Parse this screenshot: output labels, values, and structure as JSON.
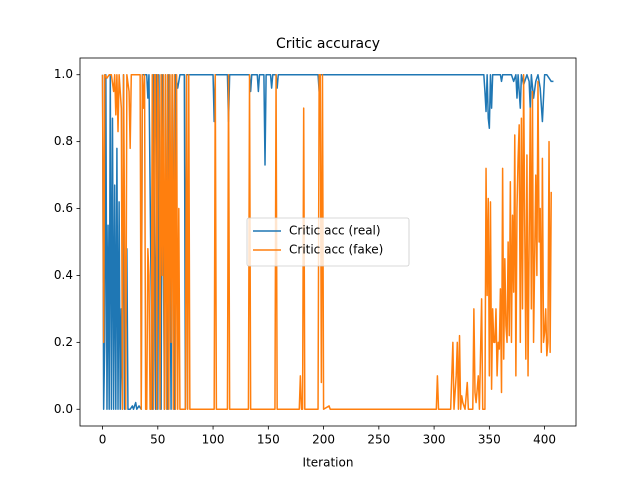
{
  "chart_data": {
    "type": "line",
    "title": "Critic accuracy",
    "x_label": "Iteration",
    "xlim": [
      -20.4,
      428.4
    ],
    "xticks": [
      0,
      50,
      100,
      150,
      200,
      250,
      300,
      350,
      400
    ],
    "ylim": [
      -0.05,
      1.05
    ],
    "yticks": [
      {
        "value": 0,
        "label": "0.0"
      },
      {
        "value": 0.2,
        "label": "0.2"
      },
      {
        "value": 0.4,
        "label": "0.4"
      },
      {
        "value": 0.6,
        "label": "0.6"
      },
      {
        "value": 0.8,
        "label": "0.8"
      },
      {
        "value": 1,
        "label": "1.0"
      }
    ],
    "grid": false,
    "legend": "center",
    "series": [
      {
        "name": "Critic acc (real)",
        "color": "#1f77b4",
        "x": [
          0,
          1,
          2,
          3,
          4,
          5,
          6,
          7,
          8,
          9,
          10,
          11,
          12,
          13,
          14,
          15,
          16,
          17,
          18,
          19,
          20,
          22,
          23,
          25,
          27,
          28,
          30,
          31,
          33,
          35,
          36,
          40,
          41,
          42,
          45,
          46,
          48,
          49,
          50,
          51,
          53,
          54,
          56,
          57,
          59,
          60,
          62,
          63,
          65,
          66,
          68,
          70,
          74,
          75,
          76,
          100,
          101,
          102,
          113,
          114,
          115,
          133,
          134,
          135,
          140,
          141,
          142,
          146,
          147,
          148,
          152,
          153,
          154,
          157,
          158,
          159,
          195,
          196,
          197,
          345,
          346,
          347,
          348,
          349,
          350,
          351,
          352,
          353,
          360,
          361,
          362,
          370,
          372,
          374,
          375,
          376,
          378,
          379,
          381,
          384,
          386,
          387,
          388,
          390,
          392,
          394,
          396,
          398,
          400,
          402,
          404,
          406,
          408
        ],
        "values": [
          1,
          0,
          0.2,
          1,
          0,
          0.55,
          0,
          1,
          0,
          0.87,
          0,
          0.67,
          0,
          0.78,
          0,
          0.62,
          0,
          0.3,
          0,
          1,
          0,
          0.48,
          0,
          0,
          0.01,
          0,
          0.02,
          0,
          0.01,
          0,
          1,
          1,
          0.93,
          1,
          0,
          1,
          0,
          1,
          0,
          1,
          0,
          1,
          0,
          1,
          0,
          1,
          0,
          1,
          0,
          1,
          0.96,
          1,
          1,
          0,
          1,
          1,
          0.86,
          1,
          1,
          0.86,
          1,
          1,
          0.95,
          1,
          1,
          0.95,
          1,
          1,
          0.73,
          1,
          1,
          0.96,
          1,
          1,
          0.96,
          1,
          1,
          0.95,
          1,
          1,
          0.95,
          0.89,
          1,
          0.87,
          0.84,
          1,
          0.9,
          1,
          1,
          0.98,
          1,
          1,
          0.98,
          1,
          0.93,
          1,
          0.9,
          1,
          0.97,
          1,
          0.98,
          0.9,
          1,
          0.93,
          0.98,
          1,
          0.96,
          0.86,
          1,
          1,
          0.99,
          0.98,
          0.98
        ]
      },
      {
        "name": "Critic acc (fake)",
        "color": "#ff7f0e",
        "x": [
          0,
          1,
          2,
          4,
          6,
          8,
          10,
          11,
          12,
          13,
          14,
          15,
          17,
          18,
          19,
          21,
          22,
          24,
          25,
          26,
          34,
          35,
          36,
          37,
          38,
          39,
          40,
          41,
          42,
          43,
          44,
          45,
          46,
          47,
          48,
          49,
          50,
          51,
          52,
          53,
          54,
          55,
          56,
          57,
          58,
          59,
          60,
          61,
          62,
          63,
          64,
          65,
          66,
          67,
          68,
          69,
          70,
          75,
          76,
          77,
          78,
          79,
          101,
          102,
          103,
          113,
          114,
          115,
          132,
          133,
          134,
          156,
          157,
          158,
          178,
          179,
          180,
          181,
          182,
          183,
          195,
          196,
          197,
          198,
          199,
          200,
          205,
          206,
          302,
          303,
          304,
          315,
          317,
          318,
          320,
          321,
          322,
          323,
          324,
          325,
          326,
          328,
          330,
          331,
          335,
          336,
          337,
          338,
          340,
          341,
          343,
          344,
          346,
          347,
          348,
          349,
          350,
          351,
          352,
          353,
          354,
          355,
          356,
          357,
          358,
          359,
          360,
          361,
          362,
          363,
          364,
          365,
          366,
          367,
          368,
          369,
          370,
          371,
          372,
          373,
          374,
          375,
          376,
          377,
          378,
          379,
          380,
          381,
          382,
          383,
          384,
          385,
          386,
          387,
          388,
          389,
          390,
          392,
          393,
          394,
          395,
          396,
          397,
          398,
          399,
          400,
          401,
          402,
          403,
          404,
          405,
          406
        ],
        "values": [
          1,
          0.2,
          1,
          0.99,
          1,
          1,
          0.95,
          1,
          0.88,
          1,
          0.83,
          1,
          0.9,
          0,
          1,
          0,
          1,
          0.95,
          0.78,
          1,
          1,
          0,
          1,
          0.9,
          1,
          0,
          0,
          0.48,
          0.4,
          0,
          0,
          1,
          0,
          1,
          1,
          0,
          1,
          0.9,
          0,
          1,
          0.4,
          1,
          0,
          1,
          0,
          1,
          0,
          1,
          0.2,
          1,
          0,
          1,
          0,
          1,
          0,
          0.6,
          0,
          0,
          1,
          0,
          1,
          0,
          0,
          1,
          0,
          0,
          1,
          0,
          0,
          1,
          0,
          0,
          1,
          0,
          0,
          0.1,
          0,
          0,
          0.9,
          0,
          0,
          1,
          1,
          0.08,
          1,
          0,
          0.01,
          0,
          0,
          0.1,
          0,
          0,
          0.2,
          0,
          0.1,
          0.2,
          0,
          0.22,
          0,
          0.04,
          0.02,
          0,
          0.08,
          0,
          0,
          0.3,
          0.05,
          0.02,
          0.1,
          0,
          0.33,
          0,
          0,
          0.72,
          0.34,
          0.63,
          0.1,
          0.62,
          0.06,
          0.3,
          0.2,
          0.2,
          0.3,
          0.1,
          0.2,
          0.18,
          0.36,
          0.05,
          0.72,
          0.15,
          0.45,
          0.25,
          0.2,
          0.5,
          0.22,
          0.68,
          0.2,
          0.58,
          0.35,
          0.82,
          0.1,
          0.6,
          0.75,
          0.85,
          0.2,
          0.87,
          0.3,
          1,
          0.55,
          0.15,
          0.76,
          0.1,
          0.5,
          0.9,
          0.3,
          0.95,
          0.2,
          0.7,
          0.4,
          0.98,
          0.5,
          0.6,
          0.17,
          0.75,
          0.2,
          0.23,
          0.3,
          0.16,
          0.2,
          0.8,
          0.17,
          0.65
        ]
      }
    ]
  }
}
